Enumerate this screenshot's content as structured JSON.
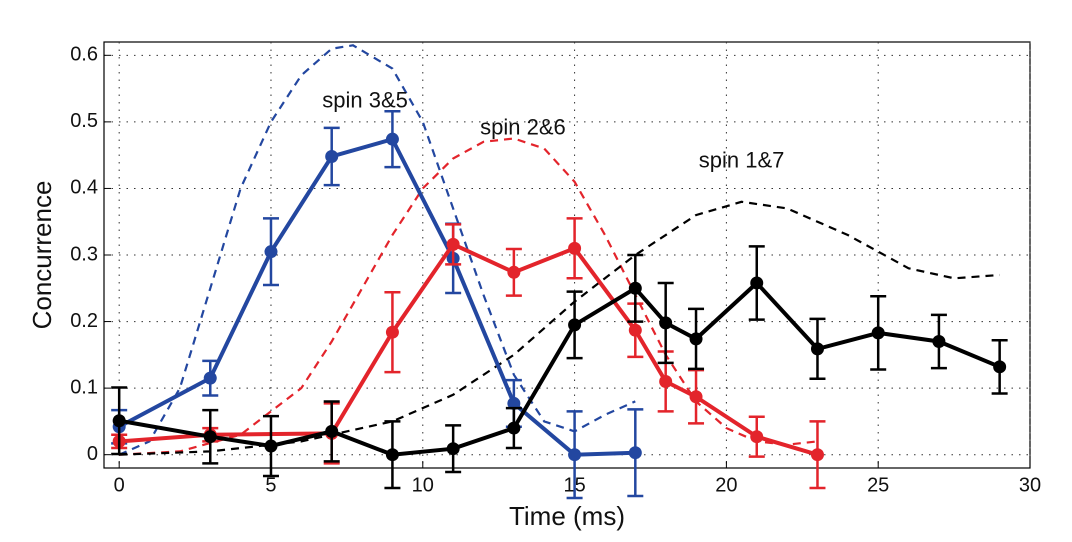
{
  "chart_data": {
    "type": "line",
    "x_label": "Time (ms)",
    "y_label": "Concurrence",
    "xlim": [
      -0.5,
      30
    ],
    "ylim": [
      -0.02,
      0.62
    ],
    "xticks": [
      0,
      5,
      10,
      15,
      20,
      25,
      30
    ],
    "yticks": [
      0,
      0.1,
      0.2,
      0.3,
      0.4,
      0.5,
      0.6
    ],
    "grid": true,
    "series": [
      {
        "name": "spin 3&5",
        "color": "#2347a0",
        "dashed": true,
        "x": [
          0,
          1,
          2,
          3,
          4,
          5,
          6,
          7,
          7.7,
          9,
          10,
          11,
          12,
          13,
          14,
          15,
          16,
          17
        ],
        "values": [
          0,
          0.02,
          0.1,
          0.25,
          0.4,
          0.5,
          0.57,
          0.61,
          0.615,
          0.58,
          0.5,
          0.37,
          0.24,
          0.12,
          0.05,
          0.035,
          0.06,
          0.08
        ]
      },
      {
        "name": "spin 2&6",
        "color": "#e3242b",
        "dashed": true,
        "x": [
          0,
          2,
          4,
          6,
          7,
          8,
          9,
          10,
          11,
          12,
          13,
          14,
          15,
          16,
          17,
          18,
          19,
          20,
          21,
          22,
          23
        ],
        "values": [
          0,
          0.005,
          0.03,
          0.1,
          0.17,
          0.25,
          0.33,
          0.4,
          0.445,
          0.47,
          0.475,
          0.46,
          0.41,
          0.33,
          0.24,
          0.15,
          0.08,
          0.04,
          0.02,
          0.015,
          0.02
        ]
      },
      {
        "name": "spin 1&7",
        "color": "#000000",
        "dashed": true,
        "x": [
          0,
          3,
          6,
          9,
          11,
          13,
          15,
          17,
          19,
          20.5,
          22,
          24,
          26,
          27.5,
          29
        ],
        "values": [
          0,
          0.005,
          0.02,
          0.05,
          0.09,
          0.15,
          0.23,
          0.3,
          0.36,
          0.38,
          0.37,
          0.33,
          0.28,
          0.265,
          0.27
        ]
      },
      {
        "color": "#2347a0",
        "dashed": false,
        "x": [
          0,
          3,
          5,
          7,
          9,
          11,
          13,
          15,
          17
        ],
        "values": [
          0.042,
          0.115,
          0.305,
          0.448,
          0.474,
          0.295,
          0.077,
          0,
          0.003
        ],
        "errors": [
          0.025,
          0.026,
          0.05,
          0.043,
          0.042,
          0.052,
          0.035,
          0.065,
          0.065
        ]
      },
      {
        "color": "#e3242b",
        "dashed": false,
        "x": [
          0,
          3,
          7,
          9,
          11,
          13,
          15,
          17,
          18,
          19,
          21,
          23
        ],
        "values": [
          0.02,
          0.03,
          0.032,
          0.184,
          0.316,
          0.274,
          0.31,
          0.187,
          0.11,
          0.087,
          0.027,
          0
        ],
        "errors": [
          0.01,
          0.01,
          0.045,
          0.06,
          0.03,
          0.035,
          0.045,
          0.04,
          0.045,
          0.04,
          0.03,
          0.05
        ]
      },
      {
        "color": "#000000",
        "dashed": false,
        "x": [
          0,
          3,
          5,
          7,
          9,
          11,
          13,
          15,
          17,
          18,
          19,
          21,
          23,
          25,
          27,
          29
        ],
        "values": [
          0.051,
          0.027,
          0.013,
          0.035,
          0,
          0.009,
          0.04,
          0.195,
          0.25,
          0.198,
          0.174,
          0.258,
          0.159,
          0.183,
          0.17,
          0.132
        ],
        "errors": [
          0.05,
          0.04,
          0.045,
          0.045,
          0.05,
          0.035,
          0.03,
          0.05,
          0.05,
          0.06,
          0.045,
          0.055,
          0.045,
          0.055,
          0.04,
          0.04
        ]
      }
    ]
  }
}
